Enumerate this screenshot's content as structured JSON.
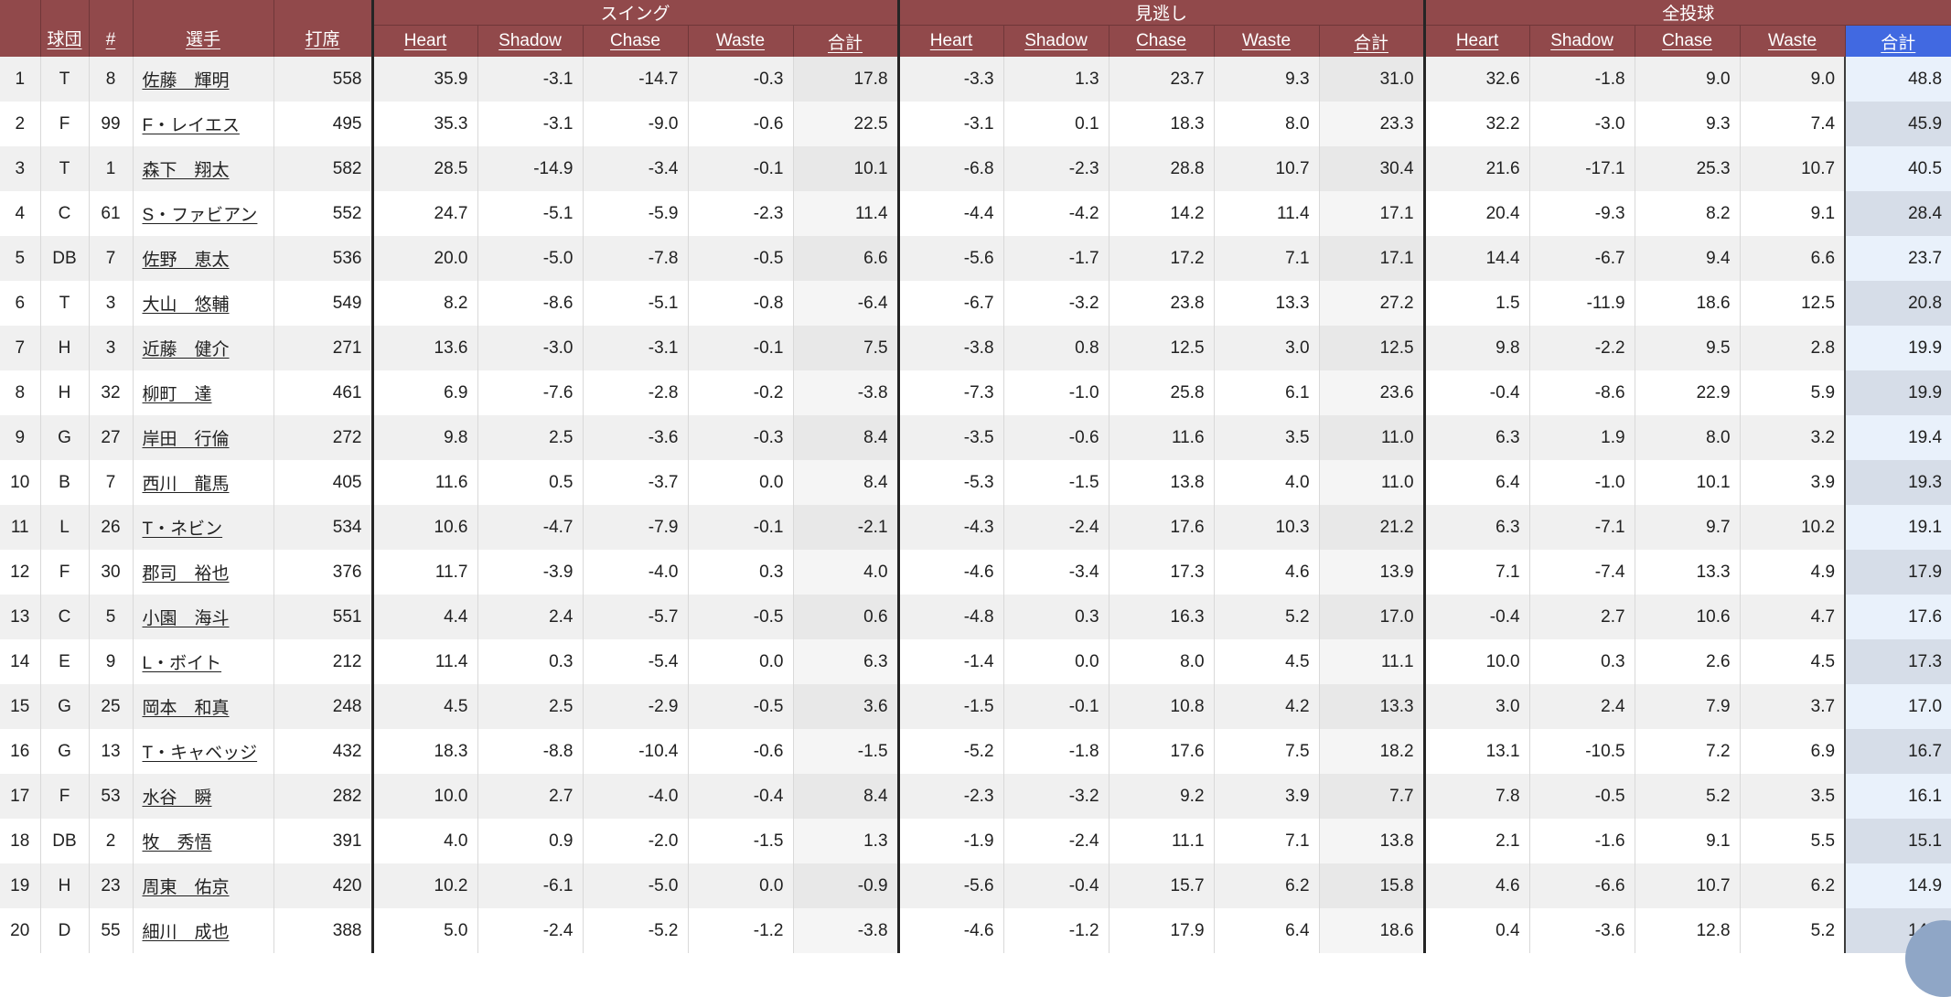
{
  "table": {
    "sorted_by": "全投球 合計",
    "colors": {
      "header_bg": "#91494B",
      "sorted_header_bg": "#4169E1",
      "row_odd": "#f0f0f0",
      "row_even": "#ffffff",
      "total_col_odd": "#e8e8e8",
      "total_col_even": "#f5f5f5",
      "sorted_col_odd": "#e9f1fb",
      "sorted_col_even": "#d6dde8",
      "fab": "#8fa6c6"
    },
    "header": {
      "groups": [
        "スイング",
        "見逃し",
        "全投球"
      ],
      "base": [
        "球団",
        "#",
        "選手",
        "打席"
      ],
      "metrics": [
        "Heart",
        "Shadow",
        "Chase",
        "Waste",
        "合計"
      ]
    },
    "rows": [
      {
        "rank": "1",
        "team": "T",
        "num": "8",
        "player": "佐藤　輝明",
        "pa": "558",
        "swing": [
          "35.9",
          "-3.1",
          "-14.7",
          "-0.3",
          "17.8"
        ],
        "miss": [
          "-3.3",
          "1.3",
          "23.7",
          "9.3",
          "31.0"
        ],
        "all": [
          "32.6",
          "-1.8",
          "9.0",
          "9.0",
          "48.8"
        ]
      },
      {
        "rank": "2",
        "team": "F",
        "num": "99",
        "player": "F・レイエス",
        "pa": "495",
        "swing": [
          "35.3",
          "-3.1",
          "-9.0",
          "-0.6",
          "22.5"
        ],
        "miss": [
          "-3.1",
          "0.1",
          "18.3",
          "8.0",
          "23.3"
        ],
        "all": [
          "32.2",
          "-3.0",
          "9.3",
          "7.4",
          "45.9"
        ]
      },
      {
        "rank": "3",
        "team": "T",
        "num": "1",
        "player": "森下　翔太",
        "pa": "582",
        "swing": [
          "28.5",
          "-14.9",
          "-3.4",
          "-0.1",
          "10.1"
        ],
        "miss": [
          "-6.8",
          "-2.3",
          "28.8",
          "10.7",
          "30.4"
        ],
        "all": [
          "21.6",
          "-17.1",
          "25.3",
          "10.7",
          "40.5"
        ]
      },
      {
        "rank": "4",
        "team": "C",
        "num": "61",
        "player": "S・ファビアン",
        "pa": "552",
        "swing": [
          "24.7",
          "-5.1",
          "-5.9",
          "-2.3",
          "11.4"
        ],
        "miss": [
          "-4.4",
          "-4.2",
          "14.2",
          "11.4",
          "17.1"
        ],
        "all": [
          "20.4",
          "-9.3",
          "8.2",
          "9.1",
          "28.4"
        ]
      },
      {
        "rank": "5",
        "team": "DB",
        "num": "7",
        "player": "佐野　恵太",
        "pa": "536",
        "swing": [
          "20.0",
          "-5.0",
          "-7.8",
          "-0.5",
          "6.6"
        ],
        "miss": [
          "-5.6",
          "-1.7",
          "17.2",
          "7.1",
          "17.1"
        ],
        "all": [
          "14.4",
          "-6.7",
          "9.4",
          "6.6",
          "23.7"
        ]
      },
      {
        "rank": "6",
        "team": "T",
        "num": "3",
        "player": "大山　悠輔",
        "pa": "549",
        "swing": [
          "8.2",
          "-8.6",
          "-5.1",
          "-0.8",
          "-6.4"
        ],
        "miss": [
          "-6.7",
          "-3.2",
          "23.8",
          "13.3",
          "27.2"
        ],
        "all": [
          "1.5",
          "-11.9",
          "18.6",
          "12.5",
          "20.8"
        ]
      },
      {
        "rank": "7",
        "team": "H",
        "num": "3",
        "player": "近藤　健介",
        "pa": "271",
        "swing": [
          "13.6",
          "-3.0",
          "-3.1",
          "-0.1",
          "7.5"
        ],
        "miss": [
          "-3.8",
          "0.8",
          "12.5",
          "3.0",
          "12.5"
        ],
        "all": [
          "9.8",
          "-2.2",
          "9.5",
          "2.8",
          "19.9"
        ]
      },
      {
        "rank": "8",
        "team": "H",
        "num": "32",
        "player": "柳町　達",
        "pa": "461",
        "swing": [
          "6.9",
          "-7.6",
          "-2.8",
          "-0.2",
          "-3.8"
        ],
        "miss": [
          "-7.3",
          "-1.0",
          "25.8",
          "6.1",
          "23.6"
        ],
        "all": [
          "-0.4",
          "-8.6",
          "22.9",
          "5.9",
          "19.9"
        ]
      },
      {
        "rank": "9",
        "team": "G",
        "num": "27",
        "player": "岸田　行倫",
        "pa": "272",
        "swing": [
          "9.8",
          "2.5",
          "-3.6",
          "-0.3",
          "8.4"
        ],
        "miss": [
          "-3.5",
          "-0.6",
          "11.6",
          "3.5",
          "11.0"
        ],
        "all": [
          "6.3",
          "1.9",
          "8.0",
          "3.2",
          "19.4"
        ]
      },
      {
        "rank": "10",
        "team": "B",
        "num": "7",
        "player": "西川　龍馬",
        "pa": "405",
        "swing": [
          "11.6",
          "0.5",
          "-3.7",
          "0.0",
          "8.4"
        ],
        "miss": [
          "-5.3",
          "-1.5",
          "13.8",
          "4.0",
          "11.0"
        ],
        "all": [
          "6.4",
          "-1.0",
          "10.1",
          "3.9",
          "19.3"
        ]
      },
      {
        "rank": "11",
        "team": "L",
        "num": "26",
        "player": "T・ネビン",
        "pa": "534",
        "swing": [
          "10.6",
          "-4.7",
          "-7.9",
          "-0.1",
          "-2.1"
        ],
        "miss": [
          "-4.3",
          "-2.4",
          "17.6",
          "10.3",
          "21.2"
        ],
        "all": [
          "6.3",
          "-7.1",
          "9.7",
          "10.2",
          "19.1"
        ]
      },
      {
        "rank": "12",
        "team": "F",
        "num": "30",
        "player": "郡司　裕也",
        "pa": "376",
        "swing": [
          "11.7",
          "-3.9",
          "-4.0",
          "0.3",
          "4.0"
        ],
        "miss": [
          "-4.6",
          "-3.4",
          "17.3",
          "4.6",
          "13.9"
        ],
        "all": [
          "7.1",
          "-7.4",
          "13.3",
          "4.9",
          "17.9"
        ]
      },
      {
        "rank": "13",
        "team": "C",
        "num": "5",
        "player": "小園　海斗",
        "pa": "551",
        "swing": [
          "4.4",
          "2.4",
          "-5.7",
          "-0.5",
          "0.6"
        ],
        "miss": [
          "-4.8",
          "0.3",
          "16.3",
          "5.2",
          "17.0"
        ],
        "all": [
          "-0.4",
          "2.7",
          "10.6",
          "4.7",
          "17.6"
        ]
      },
      {
        "rank": "14",
        "team": "E",
        "num": "9",
        "player": "L・ボイト",
        "pa": "212",
        "swing": [
          "11.4",
          "0.3",
          "-5.4",
          "0.0",
          "6.3"
        ],
        "miss": [
          "-1.4",
          "0.0",
          "8.0",
          "4.5",
          "11.1"
        ],
        "all": [
          "10.0",
          "0.3",
          "2.6",
          "4.5",
          "17.3"
        ]
      },
      {
        "rank": "15",
        "team": "G",
        "num": "25",
        "player": "岡本　和真",
        "pa": "248",
        "swing": [
          "4.5",
          "2.5",
          "-2.9",
          "-0.5",
          "3.6"
        ],
        "miss": [
          "-1.5",
          "-0.1",
          "10.8",
          "4.2",
          "13.3"
        ],
        "all": [
          "3.0",
          "2.4",
          "7.9",
          "3.7",
          "17.0"
        ]
      },
      {
        "rank": "16",
        "team": "G",
        "num": "13",
        "player": "T・キャベッジ",
        "pa": "432",
        "swing": [
          "18.3",
          "-8.8",
          "-10.4",
          "-0.6",
          "-1.5"
        ],
        "miss": [
          "-5.2",
          "-1.8",
          "17.6",
          "7.5",
          "18.2"
        ],
        "all": [
          "13.1",
          "-10.5",
          "7.2",
          "6.9",
          "16.7"
        ]
      },
      {
        "rank": "17",
        "team": "F",
        "num": "53",
        "player": "水谷　瞬",
        "pa": "282",
        "swing": [
          "10.0",
          "2.7",
          "-4.0",
          "-0.4",
          "8.4"
        ],
        "miss": [
          "-2.3",
          "-3.2",
          "9.2",
          "3.9",
          "7.7"
        ],
        "all": [
          "7.8",
          "-0.5",
          "5.2",
          "3.5",
          "16.1"
        ]
      },
      {
        "rank": "18",
        "team": "DB",
        "num": "2",
        "player": "牧　秀悟",
        "pa": "391",
        "swing": [
          "4.0",
          "0.9",
          "-2.0",
          "-1.5",
          "1.3"
        ],
        "miss": [
          "-1.9",
          "-2.4",
          "11.1",
          "7.1",
          "13.8"
        ],
        "all": [
          "2.1",
          "-1.6",
          "9.1",
          "5.5",
          "15.1"
        ]
      },
      {
        "rank": "19",
        "team": "H",
        "num": "23",
        "player": "周東　佑京",
        "pa": "420",
        "swing": [
          "10.2",
          "-6.1",
          "-5.0",
          "0.0",
          "-0.9"
        ],
        "miss": [
          "-5.6",
          "-0.4",
          "15.7",
          "6.2",
          "15.8"
        ],
        "all": [
          "4.6",
          "-6.6",
          "10.7",
          "6.2",
          "14.9"
        ]
      },
      {
        "rank": "20",
        "team": "D",
        "num": "55",
        "player": "細川　成也",
        "pa": "388",
        "swing": [
          "5.0",
          "-2.4",
          "-5.2",
          "-1.2",
          "-3.8"
        ],
        "miss": [
          "-4.6",
          "-1.2",
          "17.9",
          "6.4",
          "18.6"
        ],
        "all": [
          "0.4",
          "-3.6",
          "12.8",
          "5.2",
          "14.8"
        ]
      }
    ]
  }
}
